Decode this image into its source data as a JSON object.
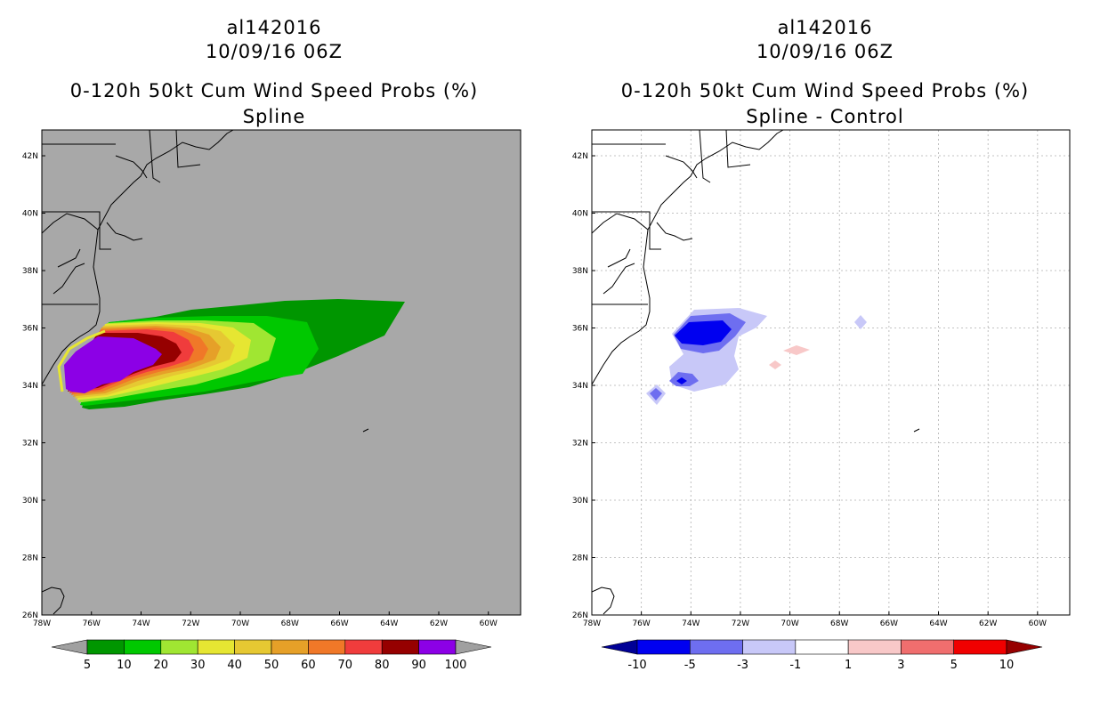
{
  "panels": [
    {
      "storm_id": "al142016",
      "datetime": "10/09/16 06Z",
      "product": "0-120h 50kt Cum Wind Speed Probs (%)",
      "subtitle": "Spline",
      "background": "#a8a8a8",
      "grid": false,
      "colorbar": {
        "labels": [
          "5",
          "10",
          "20",
          "30",
          "40",
          "50",
          "60",
          "70",
          "80",
          "90",
          "100"
        ],
        "colors": [
          "#a0a0a0",
          "#009600",
          "#00c800",
          "#a0e632",
          "#e6e632",
          "#e6c832",
          "#e6a028",
          "#f07828",
          "#f03c3c",
          "#960000",
          "#8c00e6",
          "#a0a0a0"
        ]
      }
    },
    {
      "storm_id": "al142016",
      "datetime": "10/09/16 06Z",
      "product": "0-120h 50kt Cum Wind Speed Probs (%)",
      "subtitle": "Spline - Control",
      "background": "#ffffff",
      "grid": true,
      "colorbar": {
        "labels": [
          "-10",
          "-5",
          "-3",
          "-1",
          "1",
          "3",
          "5",
          "10"
        ],
        "colors": [
          "#000096",
          "#0000f0",
          "#6e6ef0",
          "#c8c8f8",
          "#ffffff",
          "#f8c8c8",
          "#f06e6e",
          "#f00000",
          "#960000"
        ]
      }
    }
  ],
  "map": {
    "lat_labels": [
      "42N",
      "40N",
      "38N",
      "36N",
      "34N",
      "32N",
      "30N",
      "28N",
      "26N"
    ],
    "lon_labels": [
      "78W",
      "76W",
      "74W",
      "72W",
      "70W",
      "68W",
      "66W",
      "64W",
      "62W",
      "60W"
    ],
    "lat_range": [
      26,
      42.9
    ],
    "lon_range": [
      78,
      58.7
    ]
  }
}
